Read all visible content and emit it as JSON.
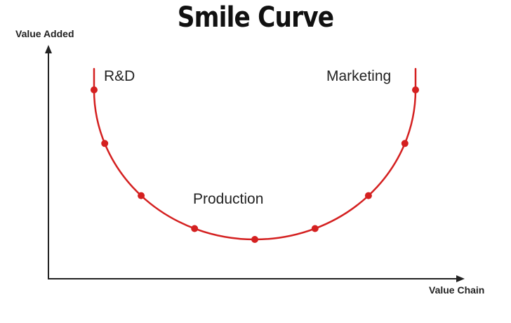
{
  "title": "Smile Curve",
  "axes": {
    "y_label": "Value Added",
    "x_label": "Value Chain"
  },
  "stages": [
    "R&D",
    "Production",
    "Marketing"
  ],
  "colors": {
    "curve": "#d42020",
    "axis": "#222222",
    "text": "#222222"
  }
}
